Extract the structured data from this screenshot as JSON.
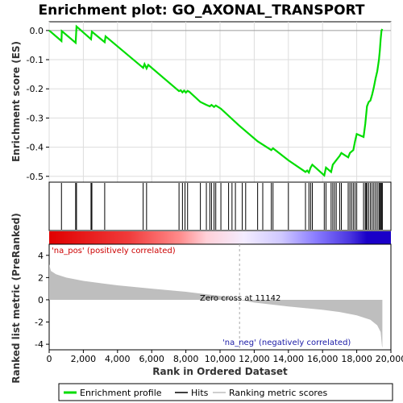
{
  "chart_data": {
    "type": "line",
    "title": "Enrichment plot: GO_AXONAL_TRANSPORT",
    "x_axis": {
      "label": "Rank in Ordered Dataset",
      "range": [
        0,
        20000
      ],
      "tick_labels": [
        "0",
        "2,000",
        "4,000",
        "6,000",
        "8,000",
        "10,000",
        "12,000",
        "14,000",
        "16,000",
        "18,000",
        "20,000"
      ],
      "tick_values": [
        0,
        2000,
        4000,
        6000,
        8000,
        10000,
        12000,
        14000,
        16000,
        18000,
        20000
      ]
    },
    "es_panel": {
      "ylabel": "Enrichment score (ES)",
      "ylim": [
        -0.52,
        0.03
      ],
      "tick_labels": [
        "0.0",
        "-0.1",
        "-0.2",
        "-0.3",
        "-0.4",
        "-0.5"
      ],
      "tick_values": [
        0.0,
        -0.1,
        -0.2,
        -0.3,
        -0.4,
        -0.5
      ],
      "grid": true,
      "line_color": "#00dd00",
      "es_curve": [
        [
          0,
          0.0
        ],
        [
          720,
          -0.036
        ],
        [
          740,
          -0.002
        ],
        [
          1550,
          -0.042
        ],
        [
          1600,
          0.014
        ],
        [
          2450,
          -0.03
        ],
        [
          2500,
          -0.004
        ],
        [
          3250,
          -0.04
        ],
        [
          3300,
          -0.02
        ],
        [
          5500,
          -0.128
        ],
        [
          5580,
          -0.115
        ],
        [
          5700,
          -0.13
        ],
        [
          5800,
          -0.118
        ],
        [
          7600,
          -0.208
        ],
        [
          7700,
          -0.205
        ],
        [
          7800,
          -0.212
        ],
        [
          7900,
          -0.206
        ],
        [
          8000,
          -0.213
        ],
        [
          8100,
          -0.207
        ],
        [
          8200,
          -0.21
        ],
        [
          8850,
          -0.245
        ],
        [
          9200,
          -0.255
        ],
        [
          9400,
          -0.26
        ],
        [
          9500,
          -0.255
        ],
        [
          9650,
          -0.262
        ],
        [
          9750,
          -0.257
        ],
        [
          10050,
          -0.268
        ],
        [
          11100,
          -0.325
        ],
        [
          12200,
          -0.38
        ],
        [
          13000,
          -0.41
        ],
        [
          13100,
          -0.404
        ],
        [
          14000,
          -0.445
        ],
        [
          15000,
          -0.485
        ],
        [
          15100,
          -0.48
        ],
        [
          15200,
          -0.487
        ],
        [
          15300,
          -0.47
        ],
        [
          15400,
          -0.46
        ],
        [
          16100,
          -0.497
        ],
        [
          16200,
          -0.47
        ],
        [
          16500,
          -0.485
        ],
        [
          16600,
          -0.46
        ],
        [
          16800,
          -0.445
        ],
        [
          17000,
          -0.43
        ],
        [
          17100,
          -0.42
        ],
        [
          17500,
          -0.435
        ],
        [
          17600,
          -0.42
        ],
        [
          17800,
          -0.41
        ],
        [
          17900,
          -0.38
        ],
        [
          18000,
          -0.355
        ],
        [
          18400,
          -0.365
        ],
        [
          18500,
          -0.32
        ],
        [
          18600,
          -0.26
        ],
        [
          18700,
          -0.245
        ],
        [
          18800,
          -0.24
        ],
        [
          18900,
          -0.22
        ],
        [
          19000,
          -0.195
        ],
        [
          19100,
          -0.165
        ],
        [
          19200,
          -0.14
        ],
        [
          19300,
          -0.1
        ],
        [
          19350,
          -0.07
        ],
        [
          19400,
          -0.03
        ],
        [
          19450,
          0.0
        ],
        [
          19500,
          0.005
        ]
      ]
    },
    "hits": {
      "color": "#000000",
      "positions": [
        720,
        1550,
        1600,
        2450,
        2500,
        3250,
        5500,
        5700,
        7600,
        7800,
        7950,
        8100,
        8850,
        9200,
        9400,
        9500,
        9650,
        9750,
        10050,
        10500,
        10700,
        10900,
        11300,
        11500,
        12200,
        12500,
        13000,
        13100,
        14000,
        15000,
        15200,
        15300,
        15400,
        16100,
        16200,
        16500,
        16600,
        16700,
        16800,
        17000,
        17100,
        17500,
        17600,
        17700,
        17800,
        17900,
        18000,
        18400,
        18500,
        18550,
        18600,
        18700,
        18800,
        18900,
        19000,
        19100,
        19200,
        19300,
        19350,
        19400,
        19450,
        19500
      ]
    },
    "metric_panel": {
      "ylabel": "Ranked list metric (PreRanked)",
      "ylim": [
        -4.5,
        5
      ],
      "tick_labels": [
        "4",
        "2",
        "0",
        "-2",
        "-4"
      ],
      "tick_values": [
        4,
        2,
        0,
        -2,
        -4
      ],
      "fill_color": "#bebebe",
      "metric_curve": [
        [
          0,
          3.2
        ],
        [
          100,
          2.6
        ],
        [
          400,
          2.3
        ],
        [
          1000,
          2.0
        ],
        [
          2000,
          1.7
        ],
        [
          4000,
          1.3
        ],
        [
          6000,
          1.0
        ],
        [
          8000,
          0.72
        ],
        [
          10000,
          0.35
        ],
        [
          11142,
          0.0
        ],
        [
          12000,
          -0.25
        ],
        [
          14000,
          -0.6
        ],
        [
          16000,
          -0.9
        ],
        [
          17000,
          -1.1
        ],
        [
          18000,
          -1.4
        ],
        [
          18800,
          -1.8
        ],
        [
          19200,
          -2.3
        ],
        [
          19400,
          -2.9
        ],
        [
          19480,
          -4.2
        ],
        [
          19500,
          -4.3
        ]
      ]
    },
    "annotations": {
      "pos_label": "'na_pos' (positively correlated)",
      "neg_label": "'na_neg' (negatively correlated)",
      "zero_cross_label": "Zero cross at 11142",
      "zero_cross_rank": 11142
    },
    "legend": {
      "placement": "bottom",
      "items": [
        {
          "label": "Enrichment profile",
          "color": "#00dd00",
          "kind": "line"
        },
        {
          "label": "Hits",
          "color": "#000000",
          "kind": "line"
        },
        {
          "label": "Ranking metric scores",
          "color": "#bebebe",
          "kind": "line"
        }
      ]
    },
    "n_genes": 19500
  }
}
